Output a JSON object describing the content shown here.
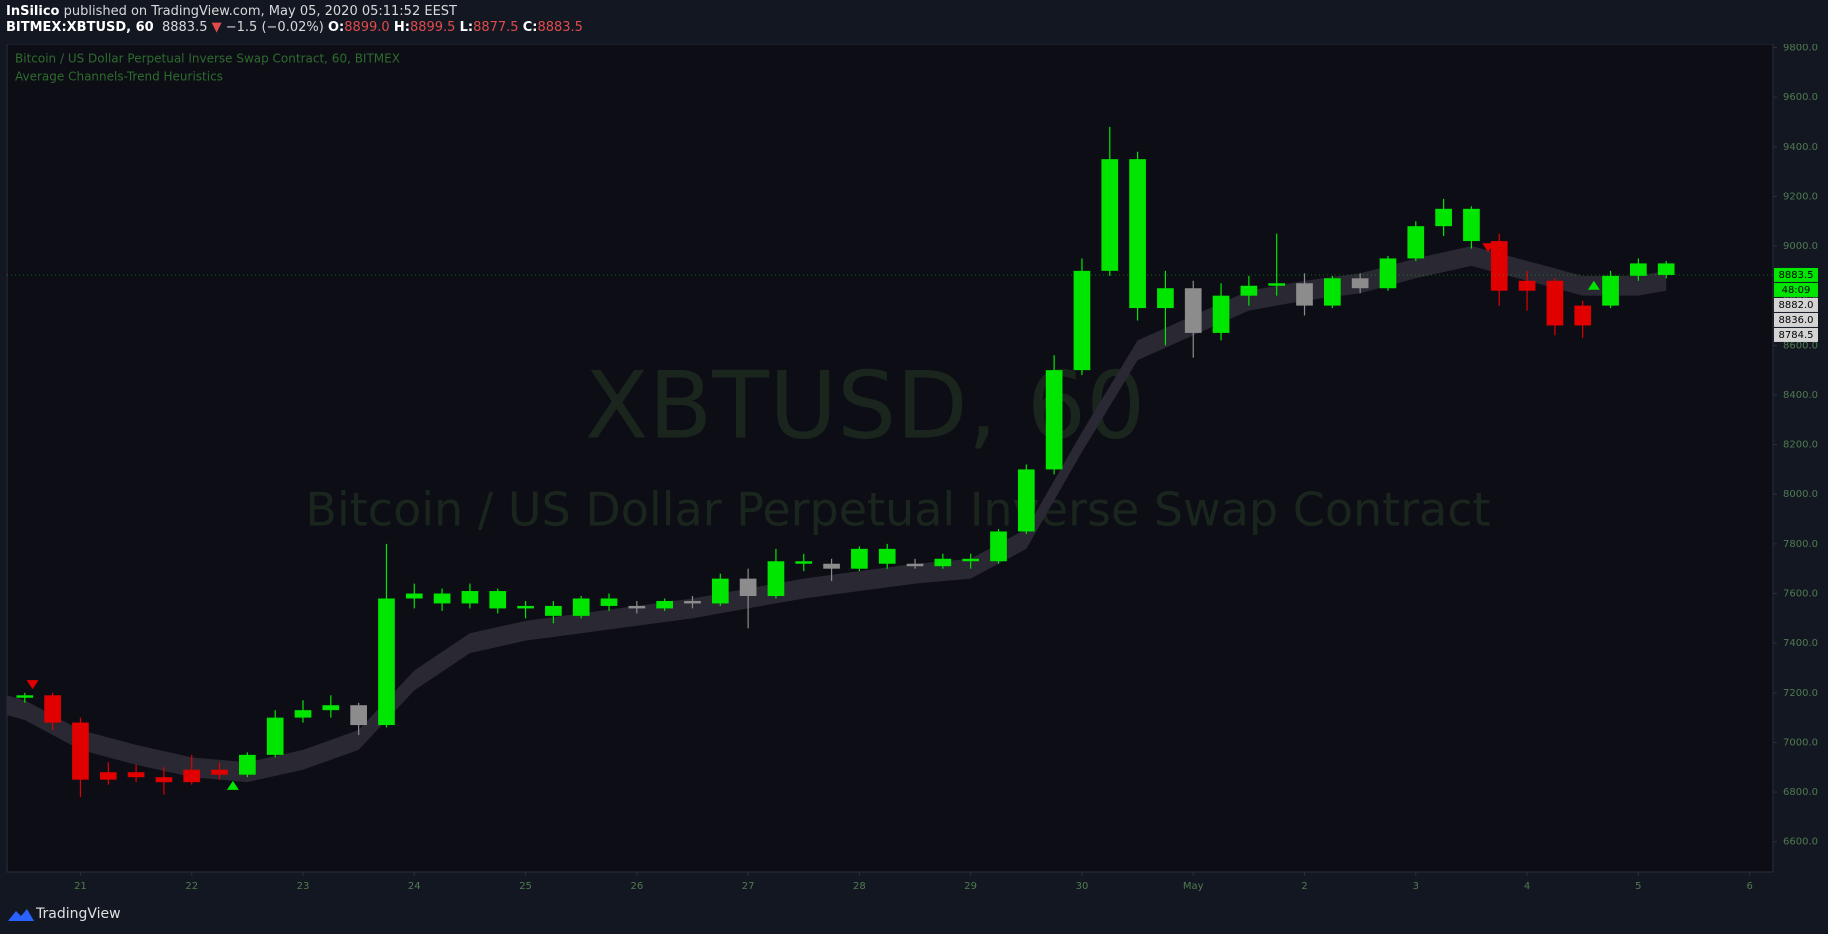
{
  "header": {
    "author": "InSilico",
    "published": "published on TradingView.com, May 05, 2020 05:11:52 EEST",
    "symbol": "BITMEX:XBTUSD, 60",
    "last": "8883.5",
    "change": "−1.5 (−0.02%)",
    "open_label": "O:",
    "open": "8899.0",
    "high_label": "H:",
    "high": "8899.5",
    "low_label": "L:",
    "low": "8877.5",
    "close_label": "C:",
    "close": "8883.5"
  },
  "footer": {
    "brand": "TradingView"
  },
  "chart_data": {
    "type": "candlestick",
    "title": "Bitcoin / US Dollar Perpetual Inverse Swap Contract, 60, BITMEX",
    "subtitle": "Average Channels-Trend Heuristics",
    "watermark": {
      "symbol": "XBTUSD, 60",
      "description": "Bitcoin / US Dollar Perpetual Inverse Swap Contract"
    },
    "x": [
      20.5,
      20.75,
      21.0,
      21.25,
      21.5,
      21.75,
      22.0,
      22.25,
      22.5,
      22.75,
      23.0,
      23.25,
      23.5,
      23.75,
      24.0,
      24.25,
      24.5,
      24.75,
      25.0,
      25.25,
      25.5,
      25.75,
      26.0,
      26.25,
      26.5,
      26.75,
      27.0,
      27.25,
      27.5,
      27.75,
      28.0,
      28.25,
      28.5,
      28.75,
      29.0,
      29.25,
      29.5,
      29.75,
      30.0,
      30.25,
      30.5,
      30.75,
      31.0,
      31.25,
      31.5,
      31.75,
      32.0,
      32.25,
      32.5,
      32.75,
      33.0,
      33.25,
      33.5,
      33.75,
      34.0,
      34.25,
      34.5,
      34.75,
      35.0,
      35.25
    ],
    "open": [
      7180,
      7190,
      7080,
      6850,
      6880,
      6860,
      6840,
      6890,
      6870,
      6950,
      7100,
      7130,
      7150,
      7070,
      7580,
      7600,
      7560,
      7610,
      7540,
      7550,
      7510,
      7580,
      7550,
      7540,
      7570,
      7560,
      7660,
      7590,
      7730,
      7720,
      7700,
      7780,
      7720,
      7710,
      7740,
      7730,
      7850,
      8100,
      8500,
      8900,
      9350,
      8750,
      8830,
      8650,
      8800,
      8840,
      8850,
      8760,
      8870,
      8830,
      8950,
      9080,
      9150,
      9020,
      8820,
      8860,
      8680,
      8760,
      8880,
      8930
    ],
    "high": [
      7200,
      7200,
      7100,
      6920,
      6910,
      6900,
      6950,
      6920,
      6960,
      7130,
      7170,
      7190,
      7160,
      7800,
      7640,
      7620,
      7640,
      7620,
      7570,
      7570,
      7590,
      7600,
      7570,
      7580,
      7590,
      7680,
      7700,
      7780,
      7760,
      7740,
      7790,
      7800,
      7740,
      7760,
      7760,
      7860,
      8120,
      8560,
      8950,
      9480,
      9380,
      8900,
      8860,
      8850,
      8880,
      9050,
      8890,
      8880,
      8890,
      8960,
      9100,
      9190,
      9160,
      9050,
      8900,
      8870,
      8780,
      8900,
      8950,
      8940
    ],
    "low": [
      7160,
      7050,
      6780,
      6830,
      6840,
      6790,
      6830,
      6850,
      6860,
      6940,
      7080,
      7100,
      7030,
      7060,
      7540,
      7530,
      7540,
      7520,
      7500,
      7480,
      7500,
      7530,
      7520,
      7530,
      7540,
      7550,
      7460,
      7580,
      7690,
      7650,
      7690,
      7700,
      7700,
      7700,
      7700,
      7720,
      7840,
      8080,
      8480,
      8880,
      8700,
      8600,
      8550,
      8620,
      8760,
      8800,
      8720,
      8750,
      8810,
      8820,
      8940,
      9040,
      8990,
      8760,
      8740,
      8640,
      8630,
      8750,
      8860,
      8870
    ],
    "close": [
      7190,
      7080,
      6850,
      6880,
      6860,
      6840,
      6890,
      6870,
      6950,
      7100,
      7130,
      7150,
      7070,
      7580,
      7600,
      7560,
      7610,
      7540,
      7550,
      7510,
      7580,
      7550,
      7540,
      7570,
      7560,
      7660,
      7590,
      7730,
      7720,
      7700,
      7780,
      7720,
      7710,
      7740,
      7730,
      7850,
      8100,
      8500,
      8900,
      9350,
      8750,
      8830,
      8650,
      8800,
      8840,
      8850,
      8760,
      8870,
      8830,
      8950,
      9080,
      9150,
      9020,
      8820,
      8860,
      8680,
      8760,
      8880,
      8930,
      8883.5
    ],
    "colors": [
      "#00e600",
      "#e00000",
      "#e00000",
      "#e00000",
      "#e00000",
      "#e00000",
      "#e00000",
      "#e00000",
      "#00e600",
      "#00e600",
      "#00e600",
      "#00e600",
      "#8c8c8c",
      "#00e600",
      "#00e600",
      "#00e600",
      "#00e600",
      "#00e600",
      "#00e600",
      "#00e600",
      "#00e600",
      "#00e600",
      "#8c8c8c",
      "#00e600",
      "#8c8c8c",
      "#00e600",
      "#8c8c8c",
      "#00e600",
      "#00e600",
      "#8c8c8c",
      "#00e600",
      "#00e600",
      "#8c8c8c",
      "#00e600",
      "#00e600",
      "#00e600",
      "#00e600",
      "#00e600",
      "#00e600",
      "#00e600",
      "#00e600",
      "#00e600",
      "#8c8c8c",
      "#00e600",
      "#00e600",
      "#00e600",
      "#8c8c8c",
      "#00e600",
      "#8c8c8c",
      "#00e600",
      "#00e600",
      "#00e600",
      "#00e600",
      "#e00000",
      "#e00000",
      "#e00000",
      "#e00000",
      "#00e600",
      "#00e600",
      "#00e600"
    ],
    "band": {
      "color": "#2a2833",
      "x": [
        20.34,
        20.5,
        21.0,
        21.5,
        22.0,
        22.5,
        23.0,
        23.5,
        24.0,
        24.5,
        25.0,
        25.5,
        26.0,
        26.5,
        27.0,
        27.5,
        28.0,
        28.5,
        29.0,
        29.5,
        30.0,
        30.5,
        31.0,
        31.5,
        32.0,
        32.5,
        33.0,
        33.5,
        34.0,
        34.5,
        35.0,
        35.25
      ],
      "upper": [
        7190,
        7170,
        7050,
        6990,
        6940,
        6920,
        6970,
        7050,
        7290,
        7440,
        7490,
        7520,
        7550,
        7580,
        7620,
        7660,
        7690,
        7720,
        7740,
        7860,
        8250,
        8620,
        8720,
        8820,
        8860,
        8890,
        8950,
        9000,
        8940,
        8880,
        8880,
        8900
      ],
      "lower": [
        7110,
        7090,
        6970,
        6910,
        6860,
        6840,
        6890,
        6970,
        7210,
        7360,
        7410,
        7440,
        7470,
        7500,
        7540,
        7580,
        7610,
        7640,
        7660,
        7780,
        8170,
        8540,
        8640,
        8740,
        8780,
        8810,
        8870,
        8920,
        8860,
        8800,
        8800,
        8820
      ]
    },
    "signals": [
      {
        "x": 20.57,
        "y": 7215,
        "direction": "down",
        "color": "#e00000"
      },
      {
        "x": 22.37,
        "y": 6845,
        "direction": "up",
        "color": "#00e600"
      },
      {
        "x": 33.65,
        "y": 8975,
        "direction": "down",
        "color": "#e00000"
      },
      {
        "x": 34.6,
        "y": 8860,
        "direction": "up",
        "color": "#00e600"
      }
    ],
    "xlim": [
      20.34,
      36.21
    ],
    "ylim": [
      6478,
      9814
    ],
    "xticks": [
      21,
      22,
      23,
      24,
      25,
      26,
      27,
      28,
      29,
      30,
      {
        "value": 31,
        "label": "May"
      },
      {
        "value": 32,
        "label": "2"
      },
      {
        "value": 33,
        "label": "3"
      },
      {
        "value": 34,
        "label": "4"
      },
      {
        "value": 35,
        "label": "5"
      },
      {
        "value": 36,
        "label": "6"
      }
    ],
    "yticks": [
      {
        "value": 6600,
        "label": "6600.0"
      },
      {
        "value": 6800,
        "label": "6800.0"
      },
      {
        "value": 7000,
        "label": "7000.0"
      },
      {
        "value": 7200,
        "label": "7200.0"
      },
      {
        "value": 7400,
        "label": "7400.0"
      },
      {
        "value": 7600,
        "label": "7600.0"
      },
      {
        "value": 7800,
        "label": "7800.0"
      },
      {
        "value": 8000,
        "label": "8000.0"
      },
      {
        "value": 8200,
        "label": "8200.0"
      },
      {
        "value": 8400,
        "label": "8400.0"
      },
      {
        "value": 8600,
        "label": "8600.0"
      },
      {
        "value": 8800,
        "label": "8800.0"
      },
      {
        "value": 9000,
        "label": "9000.0"
      },
      {
        "value": 9200,
        "label": "9200.0"
      },
      {
        "value": 9400,
        "label": "9400.0"
      },
      {
        "value": 9600,
        "label": "9600.0"
      },
      {
        "value": 9800,
        "label": "9800.0"
      }
    ],
    "last_price": 8883.5,
    "last_price_color": "#00e600",
    "countdown": "48:09",
    "indicator_labels": [
      {
        "value": 8882.0,
        "label": "8882.0"
      },
      {
        "value": 8836.0,
        "label": "8836.0"
      },
      {
        "value": 8784.5,
        "label": "8784.5"
      }
    ],
    "grid": false
  }
}
